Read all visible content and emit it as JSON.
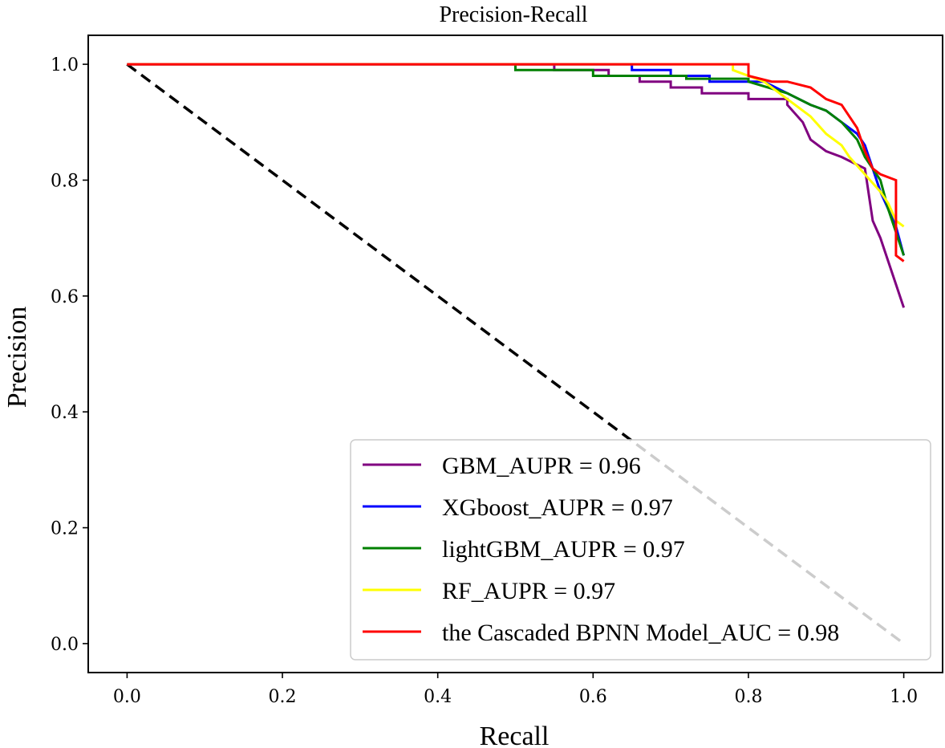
{
  "chart_data": {
    "type": "line",
    "title": "Precision-Recall",
    "xlabel": "Recall",
    "ylabel": "Precision",
    "xlim": [
      -0.05,
      1.05
    ],
    "ylim": [
      -0.05,
      1.05
    ],
    "xticks": [
      0.0,
      0.2,
      0.4,
      0.6,
      0.8,
      1.0
    ],
    "yticks": [
      0.0,
      0.2,
      0.4,
      0.6,
      0.8,
      1.0
    ],
    "xtick_labels": [
      "0.0",
      "0.2",
      "0.4",
      "0.6",
      "0.8",
      "1.0"
    ],
    "ytick_labels": [
      "0.0",
      "0.2",
      "0.4",
      "0.6",
      "0.8",
      "1.0"
    ],
    "grid": false,
    "legend_position": "lower-right",
    "reference_line": {
      "x": [
        0.0,
        1.0
      ],
      "y": [
        1.0,
        0.0
      ],
      "style": "dashed",
      "color": "#000000"
    },
    "series": [
      {
        "name": "GBM_AUPR = 0.96",
        "color": "#800080",
        "x": [
          0.0,
          0.55,
          0.55,
          0.62,
          0.62,
          0.66,
          0.66,
          0.7,
          0.7,
          0.74,
          0.74,
          0.8,
          0.8,
          0.85,
          0.85,
          0.87,
          0.88,
          0.9,
          0.92,
          0.95,
          0.96,
          0.97,
          0.98,
          0.99,
          1.0
        ],
        "y": [
          1.0,
          1.0,
          0.99,
          0.99,
          0.98,
          0.98,
          0.97,
          0.97,
          0.96,
          0.96,
          0.95,
          0.95,
          0.94,
          0.94,
          0.93,
          0.9,
          0.87,
          0.85,
          0.84,
          0.82,
          0.73,
          0.7,
          0.66,
          0.62,
          0.58
        ]
      },
      {
        "name": "XGboost_AUPR = 0.97",
        "color": "#0000ff",
        "x": [
          0.0,
          0.65,
          0.65,
          0.7,
          0.7,
          0.75,
          0.75,
          0.82,
          0.85,
          0.88,
          0.9,
          0.92,
          0.94,
          0.95,
          0.96,
          0.97,
          0.98,
          0.99,
          1.0
        ],
        "y": [
          1.0,
          1.0,
          0.99,
          0.99,
          0.98,
          0.98,
          0.97,
          0.97,
          0.95,
          0.93,
          0.92,
          0.9,
          0.88,
          0.86,
          0.82,
          0.78,
          0.75,
          0.72,
          0.67
        ]
      },
      {
        "name": "lightGBM_AUPR = 0.97",
        "color": "#008000",
        "x": [
          0.5,
          0.5,
          0.6,
          0.6,
          0.72,
          0.72,
          0.8,
          0.8,
          0.85,
          0.88,
          0.9,
          0.92,
          0.94,
          0.95,
          0.97,
          0.98,
          0.99,
          1.0
        ],
        "y": [
          1.0,
          0.99,
          0.99,
          0.98,
          0.98,
          0.975,
          0.975,
          0.97,
          0.95,
          0.93,
          0.92,
          0.9,
          0.87,
          0.84,
          0.8,
          0.75,
          0.71,
          0.67
        ]
      },
      {
        "name": "RF_AUPR = 0.97",
        "color": "#ffff00",
        "x": [
          0.0,
          0.78,
          0.78,
          0.82,
          0.85,
          0.88,
          0.9,
          0.92,
          0.93,
          0.95,
          0.97,
          0.98,
          0.99,
          1.0
        ],
        "y": [
          1.0,
          1.0,
          0.99,
          0.97,
          0.94,
          0.91,
          0.88,
          0.86,
          0.84,
          0.81,
          0.78,
          0.76,
          0.73,
          0.72
        ]
      },
      {
        "name": "the Cascaded BPNN Model_AUC = 0.98",
        "color": "#ff0000",
        "x": [
          0.0,
          0.8,
          0.8,
          0.83,
          0.85,
          0.88,
          0.9,
          0.92,
          0.93,
          0.94,
          0.95,
          0.96,
          0.97,
          0.99,
          0.99,
          1.0
        ],
        "y": [
          1.0,
          1.0,
          0.98,
          0.97,
          0.97,
          0.96,
          0.94,
          0.93,
          0.91,
          0.89,
          0.85,
          0.82,
          0.81,
          0.8,
          0.67,
          0.66
        ]
      }
    ]
  }
}
